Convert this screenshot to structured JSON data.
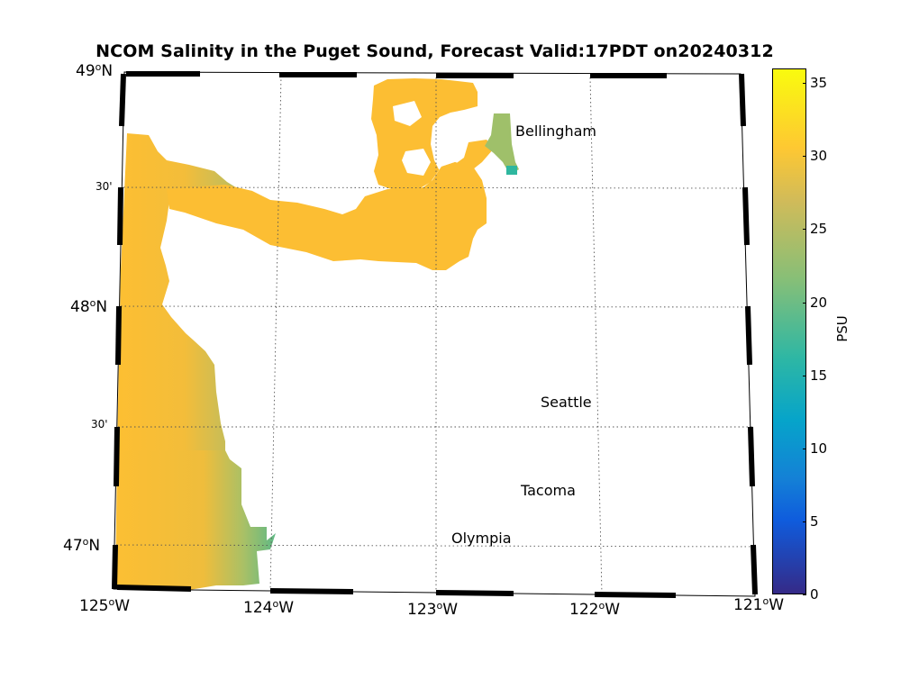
{
  "title": "NCOM Salinity in the Puget Sound, Forecast Valid:17PDT on20240312",
  "map": {
    "region": "Puget Sound",
    "lat_labels": [
      {
        "deg": "49",
        "text": "49",
        "sup": "o",
        "suffix": "N"
      },
      {
        "deg": "48",
        "text": "48",
        "sup": "o",
        "suffix": "N"
      },
      {
        "deg": "47",
        "text": "47",
        "sup": "o",
        "suffix": "N"
      }
    ],
    "lat_minute_labels": [
      "30'",
      "30'"
    ],
    "lon_labels": [
      {
        "text": "125",
        "sup": "o",
        "suffix": "W"
      },
      {
        "text": "124",
        "sup": "o",
        "suffix": "W"
      },
      {
        "text": "123",
        "sup": "o",
        "suffix": "W"
      },
      {
        "text": "122",
        "sup": "o",
        "suffix": "W"
      },
      {
        "text": "121",
        "sup": "o",
        "suffix": "W"
      }
    ],
    "cities": [
      "Bellingham",
      "Seattle",
      "Tacoma",
      "Olympia"
    ],
    "colors": {
      "ocean_high": "#fdbf32",
      "ocean_mid": "#f0bd3c",
      "coastal": "#a8c068",
      "low": "#2ab59a",
      "grid": "#555555"
    }
  },
  "colorbar": {
    "label": "PSU",
    "ticks": [
      "0",
      "5",
      "10",
      "15",
      "20",
      "25",
      "30",
      "35"
    ],
    "min": 0,
    "max": 36
  }
}
